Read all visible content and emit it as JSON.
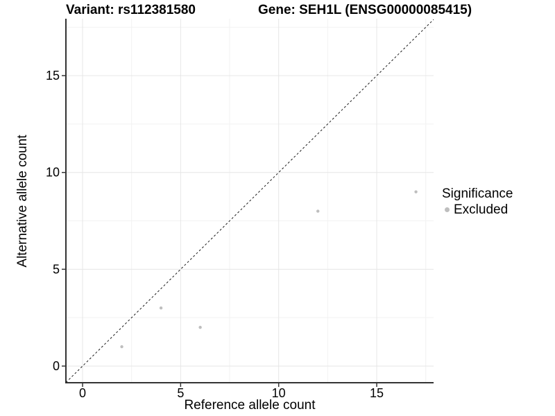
{
  "chart_data": {
    "type": "scatter",
    "titles": {
      "variant": "Variant: rs112381580",
      "gene": "Gene: SEH1L (ENSG00000085415)"
    },
    "xlabel": "Reference allele count",
    "ylabel": "Alternative allele count",
    "xlim": [
      -0.85,
      17.9
    ],
    "ylim": [
      -0.86,
      17.94
    ],
    "x_major_ticks": [
      0,
      5,
      10,
      15
    ],
    "y_major_ticks": [
      0,
      5,
      10,
      15
    ],
    "x_minor_ticks": [
      2.5,
      7.5,
      12.5,
      17.5
    ],
    "y_minor_ticks": [
      2.5,
      7.5,
      12.5,
      17.5
    ],
    "grid": true,
    "reference_line": {
      "type": "identity y=x",
      "style": "dashed",
      "color": "#1a1a1a"
    },
    "series": [
      {
        "name": "Excluded",
        "color": "#bebebe",
        "points": [
          [
            2,
            1
          ],
          [
            4,
            3
          ],
          [
            6,
            2
          ],
          [
            12,
            8
          ],
          [
            17,
            9
          ]
        ]
      }
    ],
    "legend": {
      "title": "Significance",
      "position": "right",
      "entries": [
        {
          "label": "Excluded",
          "color": "#bebebe"
        }
      ]
    },
    "colors": {
      "grid_major": "#e6e6e6",
      "grid_minor": "#f2f2f2",
      "axis_line": "#333333",
      "tick_text": "#000000"
    },
    "point_radius": 2.2,
    "tick_font_px": 18
  }
}
